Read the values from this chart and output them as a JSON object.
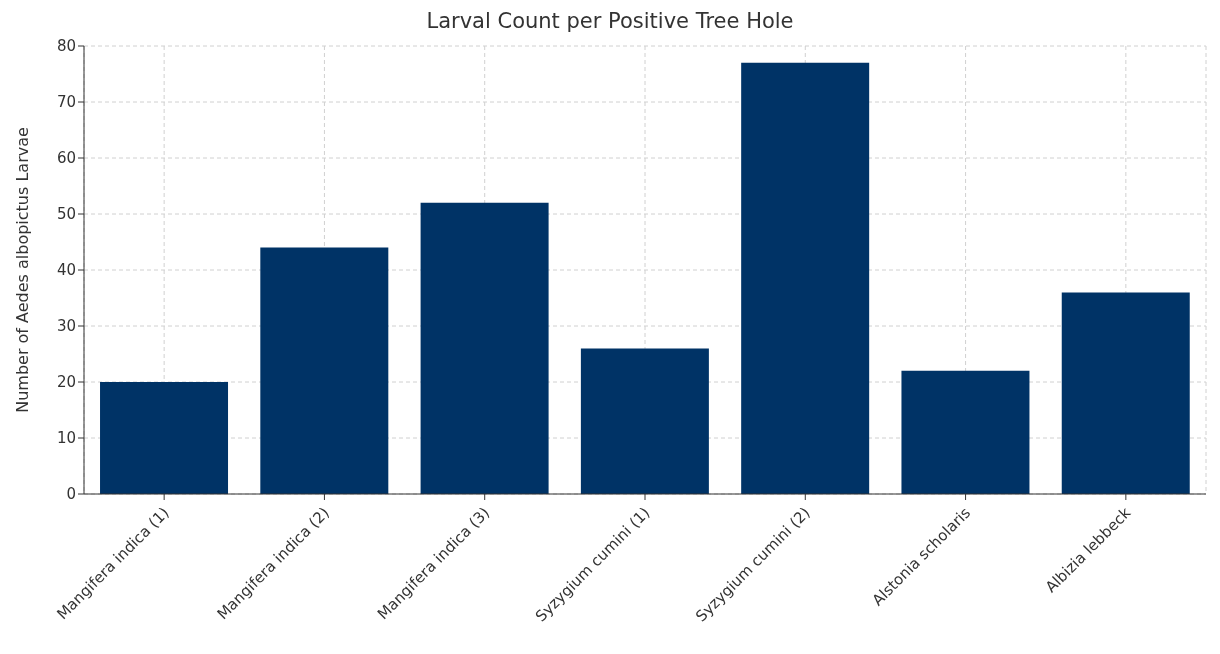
{
  "chart_data": {
    "type": "bar",
    "title": "Larval Count per Positive Tree Hole",
    "ylabel": "Number of Aedes albopictus Larvae",
    "categories": [
      "Mangifera indica (1)",
      "Mangifera indica (2)",
      "Mangifera indica (3)",
      "Syzygium cumini (1)",
      "Syzygium cumini (2)",
      "Alstonia scholaris",
      "Albizia lebbeck"
    ],
    "values": [
      20,
      44,
      52,
      26,
      77,
      22,
      36
    ],
    "color": "#003366",
    "ylim": [
      0,
      80
    ],
    "yticks": [
      0,
      10,
      20,
      30,
      40,
      50,
      60,
      70,
      80
    ],
    "grid": true
  }
}
